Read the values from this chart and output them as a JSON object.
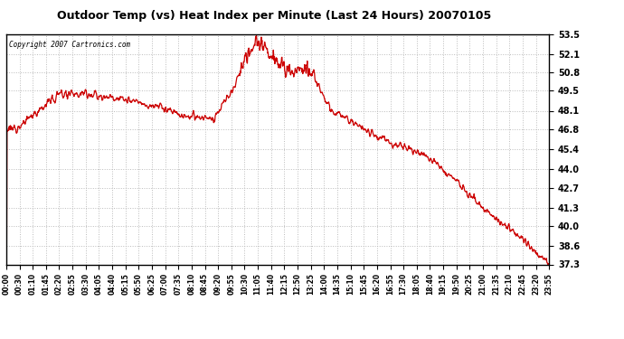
{
  "title": "Outdoor Temp (vs) Heat Index per Minute (Last 24 Hours) 20070105",
  "copyright_text": "Copyright 2007 Cartronics.com",
  "line_color": "#cc0000",
  "background_color": "#ffffff",
  "plot_bg_color": "#ffffff",
  "grid_color": "#bbbbbb",
  "yticks": [
    37.3,
    38.6,
    40.0,
    41.3,
    42.7,
    44.0,
    45.4,
    46.8,
    48.1,
    49.5,
    50.8,
    52.1,
    53.5
  ],
  "ymin": 37.3,
  "ymax": 53.5,
  "xtick_labels": [
    "00:00",
    "00:30",
    "01:10",
    "01:45",
    "02:20",
    "02:55",
    "03:30",
    "04:05",
    "04:40",
    "05:15",
    "05:50",
    "06:25",
    "07:00",
    "07:35",
    "08:10",
    "08:45",
    "09:20",
    "09:55",
    "10:30",
    "11:05",
    "11:40",
    "12:15",
    "12:50",
    "13:25",
    "14:00",
    "14:35",
    "15:10",
    "15:45",
    "16:20",
    "16:55",
    "17:30",
    "18:05",
    "18:40",
    "19:15",
    "19:50",
    "20:25",
    "21:00",
    "21:35",
    "22:10",
    "22:45",
    "23:20",
    "23:55"
  ],
  "control_x": [
    0,
    0.03,
    0.07,
    0.1,
    0.14,
    0.17,
    0.21,
    0.25,
    0.29,
    0.33,
    0.38,
    0.41,
    0.44,
    0.46,
    0.48,
    0.5,
    0.52,
    0.54,
    0.56,
    0.6,
    0.63,
    0.66,
    0.7,
    0.74,
    0.78,
    0.82,
    0.86,
    0.9,
    0.94,
    0.98,
    1.0
  ],
  "control_y": [
    46.8,
    47.2,
    48.5,
    49.3,
    49.4,
    49.2,
    48.9,
    48.6,
    48.3,
    47.7,
    47.5,
    49.2,
    51.5,
    53.0,
    52.5,
    51.2,
    50.9,
    51.1,
    50.8,
    48.0,
    47.5,
    46.8,
    46.0,
    45.4,
    44.8,
    43.5,
    42.0,
    40.5,
    39.5,
    38.0,
    37.4
  ]
}
